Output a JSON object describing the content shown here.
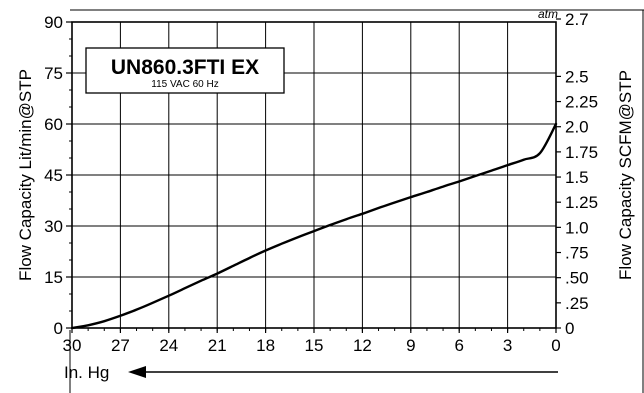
{
  "chart_data": {
    "type": "line",
    "title": "UN860.3FTI EX",
    "subtitle": "115 VAC 60 Hz",
    "xlabel": "In. Hg",
    "ylabel": "Flow Capacity Lit/min@STP",
    "y2label": "Flow Capacity SCFM@STP",
    "y2_unit_label": "atm",
    "xlim": [
      30,
      0
    ],
    "ylim": [
      0,
      90
    ],
    "x_reversed": true,
    "grid": true,
    "x_ticks": [
      "30",
      "27",
      "24",
      "21",
      "18",
      "15",
      "12",
      "9",
      "6",
      "3",
      "0"
    ],
    "y_ticks": [
      "0",
      "15",
      "30",
      "45",
      "60",
      "75",
      "90"
    ],
    "y2_ticks": [
      "0",
      ".25",
      ".50",
      ".75",
      "1.0",
      "1.25",
      "1.5",
      "1.75",
      "2.0",
      "2.25",
      "2.5",
      "2.7"
    ],
    "series": [
      {
        "x": [
          30,
          29,
          28,
          27,
          26,
          25,
          24,
          23,
          22,
          21,
          20,
          19,
          18,
          17,
          16,
          15,
          14,
          13,
          12,
          11,
          10,
          9,
          8,
          7,
          6,
          5,
          4,
          3,
          2,
          1,
          0
        ],
        "values": [
          0,
          0.8,
          2.0,
          3.6,
          5.4,
          7.4,
          9.5,
          11.7,
          13.9,
          16.0,
          18.3,
          20.6,
          22.8,
          24.8,
          26.7,
          28.5,
          30.3,
          32.0,
          33.6,
          35.3,
          36.9,
          38.5,
          40.0,
          41.6,
          43.1,
          44.7,
          46.3,
          47.9,
          49.5,
          51.4,
          60.0
        ]
      }
    ]
  }
}
